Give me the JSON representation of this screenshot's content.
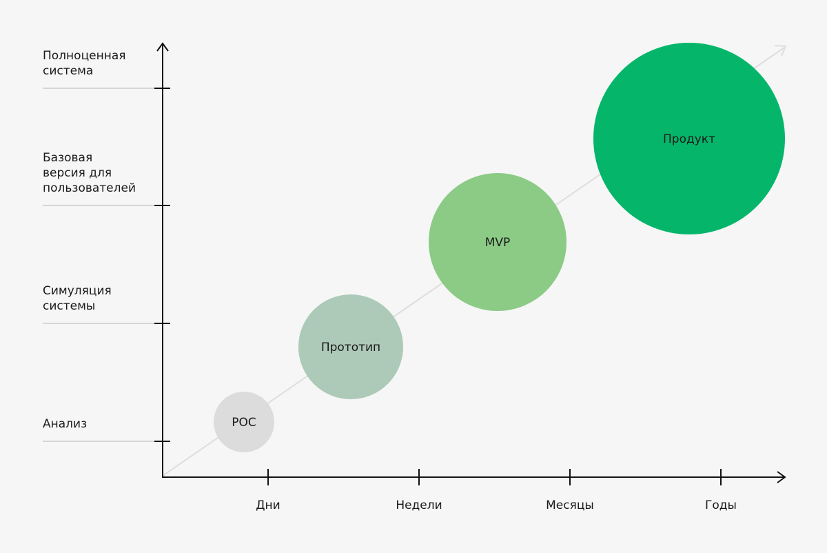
{
  "y_axis": {
    "levels": [
      {
        "lines": [
          "Анализ"
        ]
      },
      {
        "lines": [
          "Симуляция",
          "системы"
        ]
      },
      {
        "lines": [
          "Базовая",
          "версия для",
          "пользователей"
        ]
      },
      {
        "lines": [
          "Полноценная",
          "система"
        ]
      }
    ]
  },
  "x_axis": {
    "levels": [
      "Дни",
      "Недели",
      "Месяцы",
      "Годы"
    ]
  },
  "stages": [
    "POC",
    "Прототип",
    "MVP",
    "Продукт"
  ]
}
